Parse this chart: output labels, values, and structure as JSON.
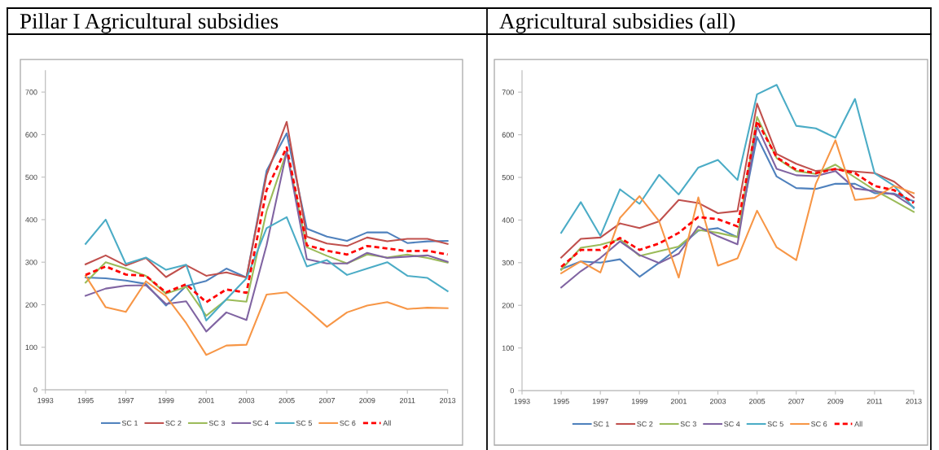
{
  "chart_data": [
    {
      "type": "line",
      "title": "Pillar I Agricultural subsidies",
      "x": [
        1995,
        1996,
        1997,
        1998,
        1999,
        2000,
        2001,
        2002,
        2003,
        2004,
        2005,
        2006,
        2007,
        2008,
        2009,
        2010,
        2011,
        2012,
        2013
      ],
      "xlim": [
        1993,
        2013
      ],
      "xticks": [
        1993,
        1995,
        1997,
        1999,
        2001,
        2003,
        2005,
        2007,
        2009,
        2011,
        2013
      ],
      "ylim": [
        0,
        750
      ],
      "yticks": [
        0,
        100,
        200,
        300,
        400,
        500,
        600,
        700
      ],
      "legend": "bottom",
      "series": [
        {
          "name": "SC 1",
          "color": "#4f81bd",
          "values": [
            264,
            262,
            257,
            249,
            198,
            244,
            256,
            285,
            264,
            515,
            603,
            379,
            360,
            350,
            370,
            370,
            345,
            349,
            350
          ]
        },
        {
          "name": "SC 2",
          "color": "#c0504d",
          "values": [
            295,
            316,
            292,
            310,
            265,
            293,
            268,
            276,
            264,
            505,
            630,
            360,
            344,
            338,
            358,
            349,
            355,
            355,
            343
          ]
        },
        {
          "name": "SC 3",
          "color": "#9bbb59",
          "values": [
            252,
            300,
            285,
            268,
            226,
            242,
            174,
            212,
            207,
            420,
            560,
            335,
            315,
            297,
            318,
            311,
            318,
            310,
            299
          ]
        },
        {
          "name": "SC 4",
          "color": "#8064a2",
          "values": [
            221,
            238,
            245,
            246,
            202,
            208,
            137,
            182,
            164,
            340,
            560,
            307,
            297,
            297,
            322,
            310,
            313,
            316,
            301
          ]
        },
        {
          "name": "SC 5",
          "color": "#4bacc6",
          "values": [
            343,
            400,
            296,
            311,
            282,
            294,
            163,
            213,
            262,
            380,
            406,
            290,
            305,
            270,
            285,
            300,
            268,
            263,
            232
          ]
        },
        {
          "name": "SC 6",
          "color": "#f79646",
          "values": [
            268,
            194,
            183,
            255,
            220,
            157,
            82,
            104,
            106,
            224,
            229,
            190,
            148,
            182,
            198,
            206,
            190,
            193,
            192
          ]
        },
        {
          "name": "All",
          "color": "#ff0000",
          "line_style": "dashed",
          "values": [
            270,
            290,
            271,
            268,
            229,
            248,
            206,
            236,
            228,
            470,
            570,
            340,
            327,
            318,
            338,
            332,
            326,
            327,
            318
          ]
        }
      ]
    },
    {
      "type": "line",
      "title": "Agricultural subsidies (all)",
      "x": [
        1995,
        1996,
        1997,
        1998,
        1999,
        2000,
        2001,
        2002,
        2003,
        2004,
        2005,
        2006,
        2007,
        2008,
        2009,
        2010,
        2011,
        2012,
        2013
      ],
      "xlim": [
        1993,
        2013
      ],
      "xticks": [
        1993,
        1995,
        1997,
        1999,
        2001,
        2003,
        2005,
        2007,
        2009,
        2011,
        2013
      ],
      "ylim": [
        0,
        750
      ],
      "yticks": [
        0,
        100,
        200,
        300,
        400,
        500,
        600,
        700
      ],
      "legend": "bottom",
      "series": [
        {
          "name": "SC 1",
          "color": "#4f81bd",
          "values": [
            285,
            303,
            300,
            308,
            267,
            300,
            335,
            375,
            381,
            360,
            595,
            502,
            475,
            473,
            485,
            485,
            463,
            462,
            444
          ]
        },
        {
          "name": "SC 2",
          "color": "#c0504d",
          "values": [
            312,
            356,
            359,
            392,
            381,
            397,
            447,
            440,
            416,
            421,
            673,
            555,
            532,
            515,
            519,
            514,
            510,
            490,
            453
          ]
        },
        {
          "name": "SC 3",
          "color": "#9bbb59",
          "values": [
            283,
            335,
            342,
            355,
            316,
            327,
            338,
            377,
            370,
            360,
            642,
            545,
            515,
            508,
            530,
            500,
            470,
            445,
            419
          ]
        },
        {
          "name": "SC 4",
          "color": "#8064a2",
          "values": [
            242,
            280,
            311,
            350,
            318,
            299,
            321,
            385,
            362,
            343,
            620,
            520,
            505,
            503,
            515,
            474,
            468,
            460,
            430
          ]
        },
        {
          "name": "SC 5",
          "color": "#4bacc6",
          "values": [
            370,
            442,
            363,
            472,
            438,
            506,
            460,
            523,
            541,
            494,
            695,
            717,
            621,
            615,
            593,
            684,
            510,
            480,
            428
          ]
        },
        {
          "name": "SC 6",
          "color": "#f79646",
          "values": [
            275,
            303,
            277,
            405,
            456,
            397,
            265,
            453,
            293,
            310,
            422,
            336,
            306,
            485,
            587,
            447,
            452,
            480,
            463
          ]
        },
        {
          "name": "All",
          "color": "#ff0000",
          "line_style": "dashed",
          "values": [
            290,
            330,
            330,
            358,
            330,
            345,
            370,
            407,
            402,
            385,
            632,
            547,
            518,
            510,
            520,
            510,
            480,
            470,
            440
          ]
        }
      ]
    }
  ]
}
